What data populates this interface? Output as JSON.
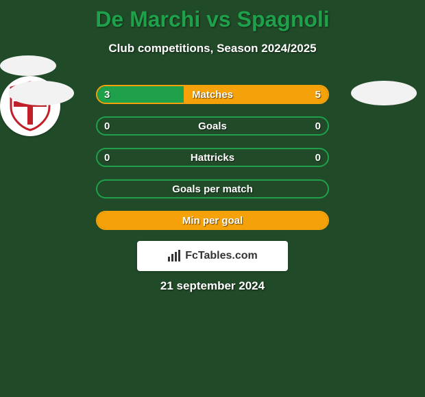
{
  "background_color": "#214a28",
  "title": "De Marchi vs Spagnoli",
  "title_color": "#1fa04a",
  "subtitle": "Club competitions, Season 2024/2025",
  "attribution": "FcTables.com",
  "date": "21 september 2024",
  "row_border_color_orange": "#f5a20a",
  "row_border_color_green": "#1fa04a",
  "fill_orange": "#f5a20a",
  "fill_green": "#1fa04a",
  "club2_shield": {
    "shield_fill": "#ffffff",
    "shield_stroke": "#c0202a",
    "cross_color": "#c0202a"
  },
  "rows": [
    {
      "label": "Matches",
      "left_value": "3",
      "right_value": "5",
      "left_pct": 37.5,
      "right_pct": 62.5,
      "left_color": "#1fa04a",
      "right_color": "#f5a20a",
      "border": "orange_green"
    },
    {
      "label": "Goals",
      "left_value": "0",
      "right_value": "0",
      "left_pct": 0,
      "right_pct": 0,
      "left_color": "#1fa04a",
      "right_color": "#f5a20a",
      "border": "green"
    },
    {
      "label": "Hattricks",
      "left_value": "0",
      "right_value": "0",
      "left_pct": 0,
      "right_pct": 0,
      "left_color": "#1fa04a",
      "right_color": "#f5a20a",
      "border": "green"
    },
    {
      "label": "Goals per match",
      "left_value": "",
      "right_value": "",
      "left_pct": 0,
      "right_pct": 0,
      "left_color": "#1fa04a",
      "right_color": "#f5a20a",
      "border": "green"
    },
    {
      "label": "Min per goal",
      "left_value": "",
      "right_value": "",
      "left_pct": 100,
      "right_pct": 0,
      "left_color": "#f5a20a",
      "right_color": "#f5a20a",
      "border": "orange"
    }
  ]
}
